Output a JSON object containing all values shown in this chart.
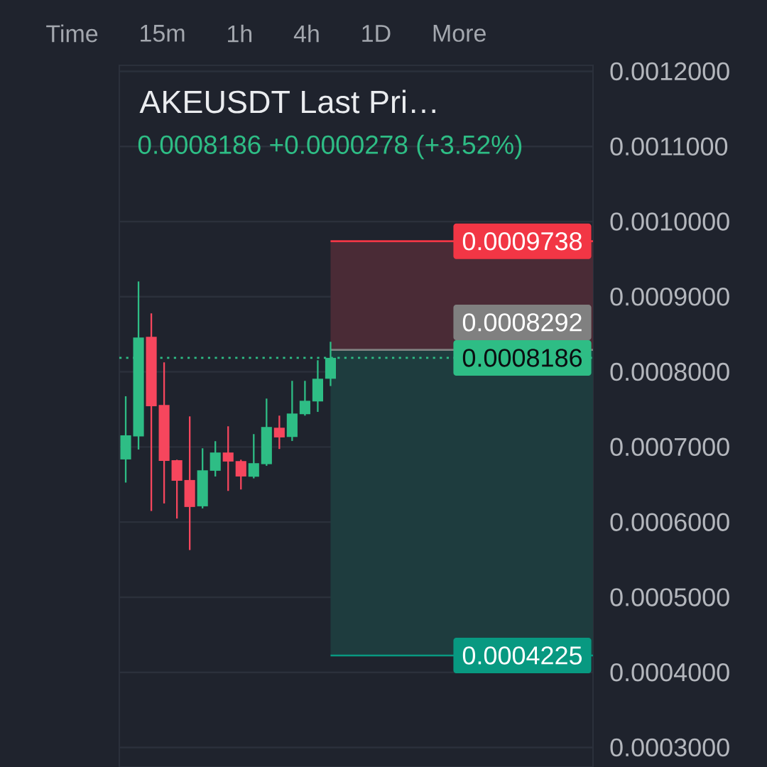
{
  "chart_data": {
    "type": "candlestick",
    "title": "AKEUSDT Last Pri…",
    "subtitle": "0.0008186 +0.0000278 (+3.52%)",
    "annotations": [
      "Time",
      "15m",
      "1h",
      "4h",
      "1D",
      "More"
    ],
    "categories": [
      null,
      null,
      null,
      null,
      null,
      null,
      null,
      null,
      null,
      null,
      null,
      null,
      null,
      null,
      null,
      null,
      null,
      null,
      null,
      null,
      null,
      null,
      null,
      null,
      null,
      null,
      null,
      null,
      null,
      null,
      null,
      null,
      null,
      null,
      null,
      null,
      null
    ],
    "ohlc": [
      [
        0.0006834,
        0.0007675,
        0.0006526,
        0.0007155
      ],
      [
        0.000714,
        0.0009203,
        0.0006966,
        0.0008456
      ],
      [
        0.0008466,
        0.0008778,
        0.0006148,
        0.0007543
      ],
      [
        0.0007559,
        0.0008126,
        0.0006248,
        0.0006815
      ],
      [
        0.0006824,
        0.000683,
        0.0006047,
        0.000655
      ],
      [
        0.000656,
        0.0007407,
        0.0005628,
        0.0006201
      ],
      [
        0.000621,
        0.0006982,
        0.0006182,
        0.0006689
      ],
      [
        0.0006683,
        0.0007077,
        0.0006607,
        0.0006926
      ],
      [
        0.0006926,
        0.0007275,
        0.0006415,
        0.0006806
      ],
      [
        0.0006812,
        0.000683,
        0.0006434,
        0.0006607
      ],
      [
        0.0006604,
        0.0007171,
        0.0006582,
        0.0006784
      ],
      [
        0.0006771,
        0.0007644,
        0.0006749,
        0.0007266
      ],
      [
        0.0007256,
        0.0007417,
        0.0006973,
        0.0007127
      ],
      [
        0.0007133,
        0.000788,
        0.000708,
        0.0007445
      ],
      [
        0.0007436,
        0.000788,
        0.0007417,
        0.0007615
      ],
      [
        0.0007606,
        0.0008154,
        0.0007467,
        0.0007908
      ],
      [
        0.0007908,
        0.00084,
        0.0007811,
        0.0008186
      ],
      null,
      null,
      null,
      null,
      null,
      null,
      null,
      null,
      null,
      null,
      null,
      null,
      null,
      null,
      null,
      null,
      null,
      null,
      null,
      null
    ],
    "colors": [
      "#2ebd85",
      "#2ebd85",
      "#f6465d",
      "#f6465d",
      "#f6465d",
      "#f6465d",
      "#2ebd85",
      "#2ebd85",
      "#f6465d",
      "#f6465d",
      "#2ebd85",
      "#2ebd85",
      "#f6465d",
      "#2ebd85",
      "#2ebd85",
      "#2ebd85",
      "#2ebd85",
      null,
      null,
      null,
      null,
      null,
      null,
      null,
      null,
      null,
      null,
      null,
      null,
      null,
      null,
      null,
      null,
      null,
      null,
      null,
      null
    ],
    "ylim": [
      0.000274,
      0.001208
    ],
    "yticks": [
      {
        "value": 0.0003,
        "label": "0.0003000"
      },
      {
        "value": 0.0004,
        "label": "0.0004000"
      },
      {
        "value": 0.0005,
        "label": "0.0005000"
      },
      {
        "value": 0.0006,
        "label": "0.0006000"
      },
      {
        "value": 0.0007,
        "label": "0.0007000"
      },
      {
        "value": 0.0008,
        "label": "0.0008000"
      },
      {
        "value": 0.0009,
        "label": "0.0009000"
      },
      {
        "value": 0.001,
        "label": "0.0010000"
      },
      {
        "value": 0.0011,
        "label": "0.0011000"
      },
      {
        "value": 0.0012,
        "label": "0.0012000"
      }
    ],
    "grid": "y",
    "tick_labels": "y",
    "bands": [
      {
        "axis": "y",
        "from": 0.0008292,
        "to": 0.0009738,
        "color": "#4a2b36"
      },
      {
        "axis": "y",
        "from": 0.0004225,
        "to": 0.0008292,
        "color": "#1e3c3e"
      }
    ],
    "ref_lines": [
      {
        "axis": "y",
        "value": 0.0009738,
        "label": "0.0009738",
        "color": "#f23645"
      },
      {
        "axis": "y",
        "value": 0.0008292,
        "label": "0.0008292",
        "color": "#808080"
      },
      {
        "axis": "y",
        "value": 0.0008186,
        "label": "0.0008186",
        "color": "#2ebd85",
        "line_style": "dotted"
      },
      {
        "axis": "y",
        "value": 0.0004225,
        "label": "0.0004225",
        "color": "#089981"
      }
    ]
  }
}
